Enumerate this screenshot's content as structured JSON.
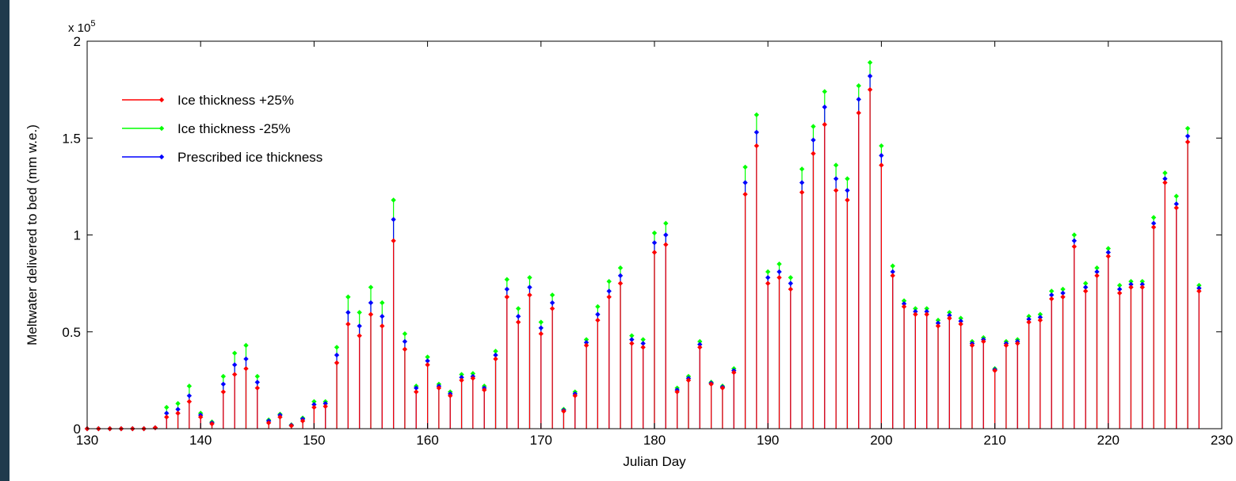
{
  "colors": {
    "frame": "#1f3a4c",
    "axes_bg": "#ffffff",
    "plus25": "#ff0000",
    "minus25": "#00ff00",
    "prescribed": "#0000ff"
  },
  "chart_data": {
    "type": "stem",
    "title": "",
    "xlabel": "Julian Day",
    "ylabel": "Meltwater delivered to bed (mm w.e.)",
    "y_exponent_label": "x 10",
    "y_exponent_power": "5",
    "xlim": [
      130,
      230
    ],
    "ylim": [
      0,
      2
    ],
    "y_scale_factor": 100000,
    "xticks": [
      "130",
      "140",
      "150",
      "160",
      "170",
      "180",
      "190",
      "200",
      "210",
      "220",
      "230"
    ],
    "yticks": [
      "0",
      "0.5",
      "1",
      "1.5",
      "2"
    ],
    "grid": false,
    "legend_position": "top-left",
    "x": [
      130,
      131,
      132,
      133,
      134,
      135,
      136,
      137,
      138,
      139,
      140,
      141,
      142,
      143,
      144,
      145,
      146,
      147,
      148,
      149,
      150,
      151,
      152,
      153,
      154,
      155,
      156,
      157,
      158,
      159,
      160,
      161,
      162,
      163,
      164,
      165,
      166,
      167,
      168,
      169,
      170,
      171,
      172,
      173,
      174,
      175,
      176,
      177,
      178,
      179,
      180,
      181,
      182,
      183,
      184,
      185,
      186,
      187,
      188,
      189,
      190,
      191,
      192,
      193,
      194,
      195,
      196,
      197,
      198,
      199,
      200,
      201,
      202,
      203,
      204,
      205,
      206,
      207,
      208,
      209,
      210,
      211,
      212,
      213,
      214,
      215,
      216,
      217,
      218,
      219,
      220,
      221,
      222,
      223,
      224,
      225,
      226,
      227,
      228
    ],
    "series": [
      {
        "name": "Ice thickness +25%",
        "color_key": "plus25",
        "values": [
          0,
          0,
          0,
          0,
          0,
          0,
          0.005,
          0.06,
          0.08,
          0.14,
          0.06,
          0.025,
          0.19,
          0.28,
          0.31,
          0.21,
          0.03,
          0.06,
          0.015,
          0.04,
          0.11,
          0.115,
          0.34,
          0.54,
          0.48,
          0.59,
          0.53,
          0.97,
          0.41,
          0.19,
          0.33,
          0.21,
          0.17,
          0.25,
          0.26,
          0.2,
          0.36,
          0.68,
          0.55,
          0.69,
          0.49,
          0.62,
          0.09,
          0.17,
          0.43,
          0.56,
          0.68,
          0.75,
          0.44,
          0.42,
          0.91,
          0.95,
          0.19,
          0.25,
          0.42,
          0.23,
          0.21,
          0.29,
          1.21,
          1.46,
          0.75,
          0.78,
          0.72,
          1.22,
          1.42,
          1.57,
          1.23,
          1.18,
          1.63,
          1.75,
          1.36,
          0.79,
          0.63,
          0.59,
          0.59,
          0.53,
          0.57,
          0.54,
          0.43,
          0.45,
          0.3,
          0.43,
          0.44,
          0.55,
          0.56,
          0.67,
          0.68,
          0.94,
          0.71,
          0.79,
          0.89,
          0.7,
          0.73,
          0.73,
          1.04,
          1.27,
          1.14,
          1.48,
          0.71
        ]
      },
      {
        "name": "Ice thickness -25%",
        "color_key": "minus25",
        "values": [
          0,
          0,
          0,
          0,
          0,
          0,
          0.005,
          0.11,
          0.13,
          0.22,
          0.08,
          0.035,
          0.27,
          0.39,
          0.43,
          0.27,
          0.045,
          0.075,
          0.02,
          0.055,
          0.14,
          0.14,
          0.42,
          0.68,
          0.6,
          0.73,
          0.65,
          1.18,
          0.49,
          0.22,
          0.37,
          0.23,
          0.19,
          0.28,
          0.285,
          0.22,
          0.4,
          0.77,
          0.62,
          0.78,
          0.55,
          0.69,
          0.1,
          0.19,
          0.46,
          0.63,
          0.76,
          0.83,
          0.48,
          0.46,
          1.01,
          1.06,
          0.21,
          0.27,
          0.45,
          0.24,
          0.22,
          0.31,
          1.35,
          1.62,
          0.81,
          0.85,
          0.78,
          1.34,
          1.56,
          1.74,
          1.36,
          1.29,
          1.77,
          1.89,
          1.46,
          0.84,
          0.66,
          0.62,
          0.62,
          0.56,
          0.6,
          0.57,
          0.45,
          0.47,
          0.31,
          0.45,
          0.46,
          0.58,
          0.59,
          0.71,
          0.72,
          1.0,
          0.75,
          0.83,
          0.93,
          0.74,
          0.76,
          0.76,
          1.09,
          1.32,
          1.2,
          1.55,
          0.74
        ]
      },
      {
        "name": "Prescribed ice thickness",
        "color_key": "prescribed",
        "values": [
          0,
          0,
          0,
          0,
          0,
          0,
          0.005,
          0.08,
          0.1,
          0.17,
          0.07,
          0.03,
          0.23,
          0.33,
          0.36,
          0.24,
          0.04,
          0.07,
          0.018,
          0.05,
          0.125,
          0.13,
          0.38,
          0.6,
          0.53,
          0.65,
          0.58,
          1.08,
          0.45,
          0.21,
          0.35,
          0.22,
          0.18,
          0.265,
          0.27,
          0.21,
          0.38,
          0.72,
          0.58,
          0.73,
          0.52,
          0.65,
          0.095,
          0.18,
          0.445,
          0.59,
          0.71,
          0.79,
          0.46,
          0.44,
          0.96,
          1.0,
          0.2,
          0.26,
          0.435,
          0.235,
          0.215,
          0.3,
          1.27,
          1.53,
          0.78,
          0.81,
          0.75,
          1.27,
          1.49,
          1.66,
          1.29,
          1.23,
          1.7,
          1.82,
          1.41,
          0.81,
          0.645,
          0.605,
          0.605,
          0.545,
          0.585,
          0.555,
          0.44,
          0.46,
          0.305,
          0.44,
          0.45,
          0.565,
          0.575,
          0.69,
          0.7,
          0.97,
          0.73,
          0.81,
          0.91,
          0.72,
          0.745,
          0.745,
          1.06,
          1.29,
          1.16,
          1.51,
          0.725
        ]
      }
    ]
  }
}
